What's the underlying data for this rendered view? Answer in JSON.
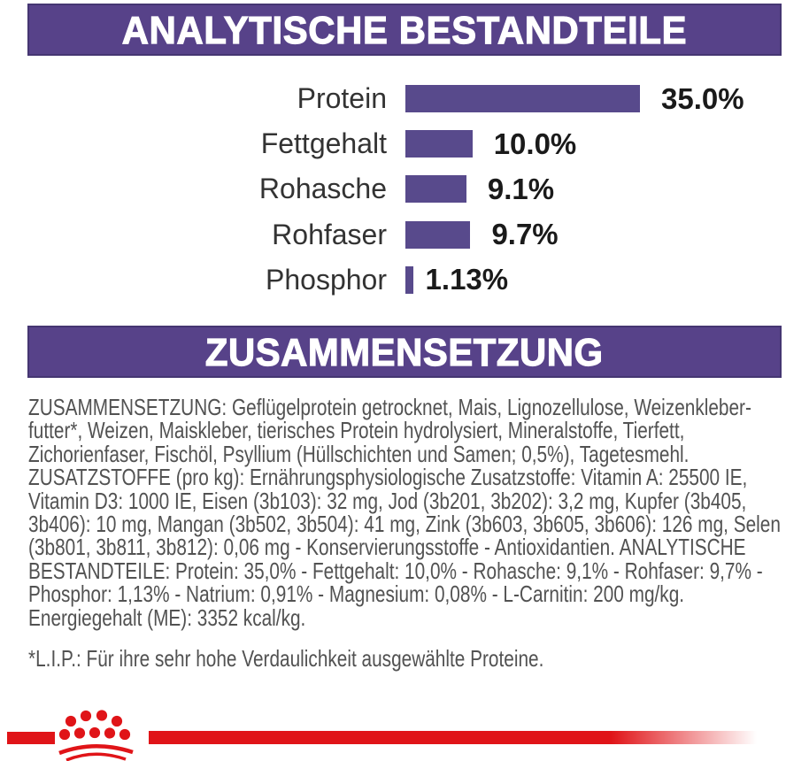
{
  "banner1": {
    "title": "ANALYTISCHE BESTANDTEILE"
  },
  "banner2": {
    "title": "ZUSAMMENSETZUNG"
  },
  "colors": {
    "purple": "#574289",
    "bar_purple": "#584a8c",
    "red": "#e01418",
    "body_text": "#525252"
  },
  "chart_data": {
    "type": "bar",
    "orientation": "horizontal",
    "categories": [
      "Protein",
      "Fettgehalt",
      "Rohasche",
      "Rohfaser",
      "Phosphor"
    ],
    "values": [
      35.0,
      10.0,
      9.1,
      9.7,
      1.13
    ],
    "value_labels": [
      "35.0%",
      "10.0%",
      "9.1%",
      "9.7%",
      "1.13%"
    ],
    "xlim": [
      0,
      35
    ],
    "grid": false,
    "legend": false,
    "title": "ANALYTISCHE BESTANDTEILE",
    "xlabel": "",
    "ylabel": ""
  },
  "composition": {
    "text": "ZUSAMMENSETZUNG: Geflügelprotein getrocknet, Mais, Lignozellulose, Weizenkleber-\nfutter*, Weizen, Maiskleber, tierisches Protein hydrolysiert, Mineralstoffe, Tierfett,\nZichorienfaser, Fischöl, Psyllium (Hüllschichten und Samen; 0,5%), Tagetesmehl.\nZUSATZSTOFFE (pro kg): Ernährungsphysiologische Zusatzstoffe: Vitamin A: 25500 IE,\nVitamin D3: 1000 IE, Eisen (3b103): 32 mg, Jod (3b201, 3b202): 3,2 mg, Kupfer (3b405,\n3b406): 10 mg, Mangan (3b502, 3b504): 41 mg, Zink (3b603, 3b605, 3b606): 126 mg, Selen\n(3b801, 3b811, 3b812): 0,06 mg - Konservierungsstoffe - Antioxidantien. ANALYTISCHE\nBESTANDTEILE: Protein: 35,0% - Fettgehalt: 10,0% - Rohasche: 9,1% - Rohfaser: 9,7% -\nPhosphor: 1,13% - Natrium: 0,91% - Magnesium: 0,08% - L-Carnitin: 200 mg/kg.\nEnergiegehalt (ME): 3352 kcal/kg."
  },
  "footnote": {
    "text": "*L.I.P.: Für ihre sehr hohe Verdaulichkeit ausgewählte Proteine."
  }
}
